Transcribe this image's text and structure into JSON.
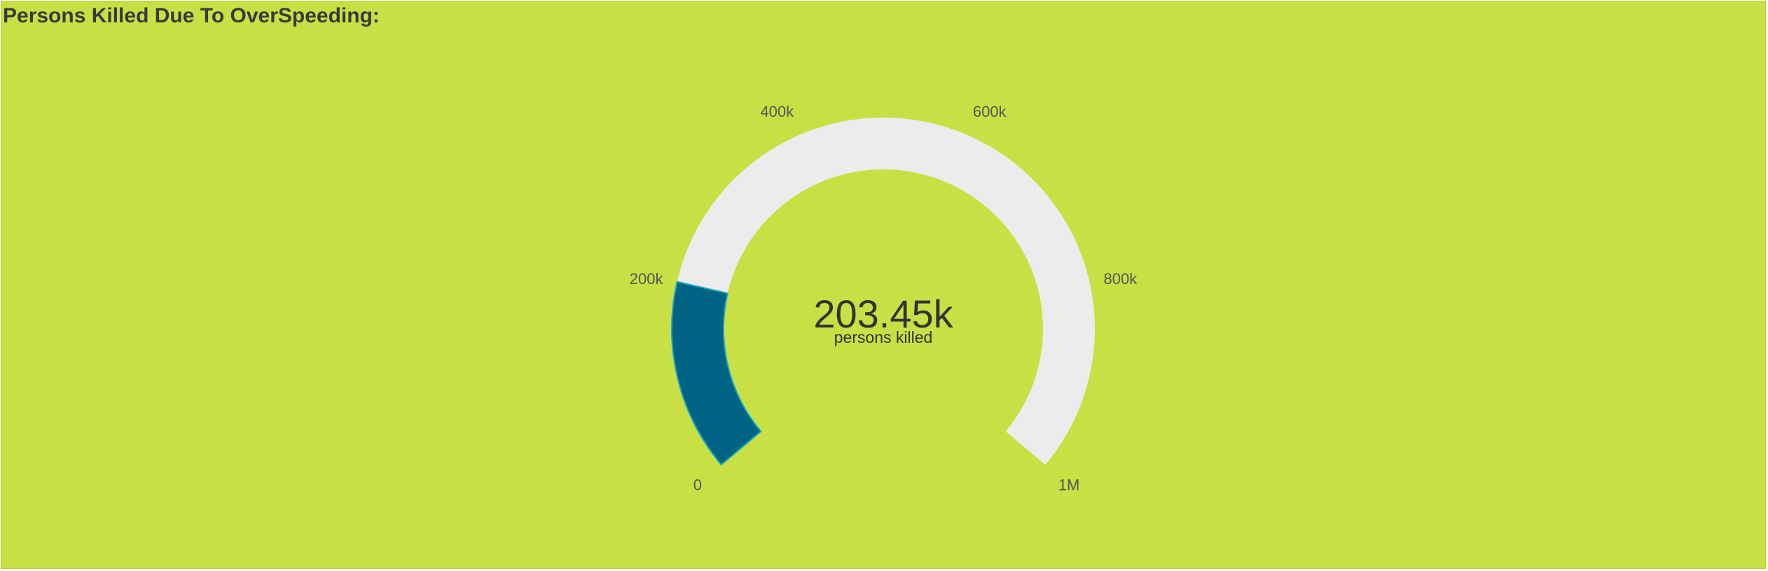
{
  "panel": {
    "title": "Persons Killed Due To OverSpeeding:"
  },
  "chart_data": {
    "type": "gauge",
    "title": "Persons Killed Due To OverSpeeding:",
    "value": 203450,
    "value_label": "203.45k",
    "unit_label": "persons killed",
    "min": 0,
    "max": 1000000,
    "ticks": [
      {
        "value": 0,
        "label": "0"
      },
      {
        "value": 200000,
        "label": "200k"
      },
      {
        "value": 400000,
        "label": "400k"
      },
      {
        "value": 600000,
        "label": "600k"
      },
      {
        "value": 800000,
        "label": "800k"
      },
      {
        "value": 1000000,
        "label": "1M"
      }
    ],
    "colors": {
      "background": "#c9e044",
      "track": "#ececec",
      "fill": "#006383",
      "fill_stroke": "#19a9c7",
      "text": "#333333",
      "tick_text": "#555555"
    }
  }
}
